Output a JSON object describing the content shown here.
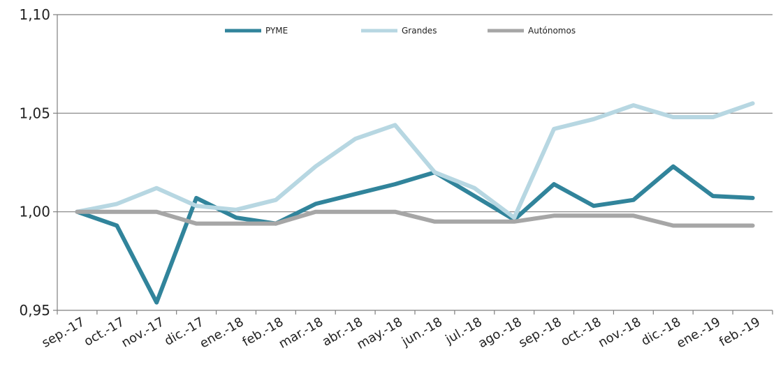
{
  "chart_data": {
    "type": "line",
    "title": "",
    "xlabel": "",
    "ylabel": "",
    "categories": [
      "sep.-17",
      "oct.-17",
      "nov.-17",
      "dic.-17",
      "ene.-18",
      "feb.-18",
      "mar.-18",
      "abr.-18",
      "may.-18",
      "jun.-18",
      "jul.-18",
      "ago.-18",
      "sep.-18",
      "oct.-18",
      "nov.-18",
      "dic.-18",
      "ene.-19",
      "feb.-19"
    ],
    "ylim": [
      0.95,
      1.1
    ],
    "yticks": [
      0.95,
      1.0,
      1.05,
      1.1
    ],
    "ytick_labels": [
      "0,95",
      "1,00",
      "1,05",
      "1,10"
    ],
    "grid": true,
    "legend_position": "top-center",
    "series": [
      {
        "name": "PYME",
        "color": "#31849b",
        "values": [
          1.0,
          0.993,
          0.954,
          1.007,
          0.997,
          0.994,
          1.004,
          1.009,
          1.014,
          1.02,
          1.008,
          0.996,
          1.014,
          1.003,
          1.006,
          1.023,
          1.008,
          1.007
        ]
      },
      {
        "name": "Grandes",
        "color": "#b7d7e2",
        "values": [
          1.0,
          1.004,
          1.012,
          1.003,
          1.001,
          1.006,
          1.023,
          1.037,
          1.044,
          1.02,
          1.012,
          0.997,
          1.042,
          1.047,
          1.054,
          1.048,
          1.048,
          1.055
        ]
      },
      {
        "name": "Autónomos",
        "color": "#a6a6a6",
        "values": [
          1.0,
          1.0,
          1.0,
          0.994,
          0.994,
          0.994,
          1.0,
          1.0,
          1.0,
          0.995,
          0.995,
          0.995,
          0.998,
          0.998,
          0.998,
          0.993,
          0.993,
          0.993
        ]
      }
    ]
  }
}
